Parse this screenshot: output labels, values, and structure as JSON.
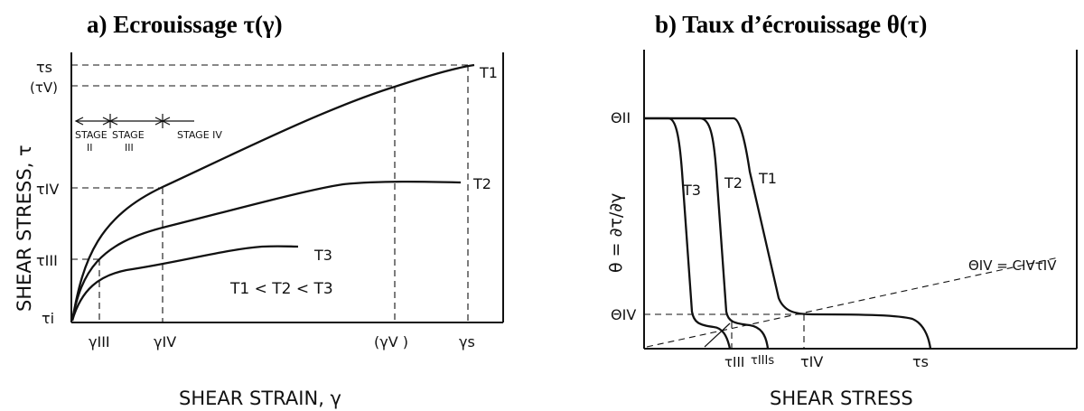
{
  "panel_a": {
    "title": "a)   Ecrouissage τ(γ)",
    "ylabel": "SHEAR STRESS, τ",
    "xlabel": "SHEAR STRAIN, γ",
    "y_ticks": {
      "tau_s": "τs",
      "tau_v": "(τV)",
      "tau_iv": "τIV",
      "tau_iii": "τIII",
      "tau_i": "τi"
    },
    "x_ticks": {
      "gamma_iii": "γIII",
      "gamma_iv": "γIV",
      "gamma_v": "(γV )",
      "gamma_s": "γs"
    },
    "stages": {
      "stage_ii": "STAGE\nII",
      "stage_iii": "STAGE\nIII",
      "stage_iv": "STAGE IV"
    },
    "curve_labels": {
      "t1": "T1",
      "t2": "T2",
      "t3": "T3"
    },
    "note": "T1  <  T2  <  T3"
  },
  "panel_b": {
    "title": "b)   Taux d’écrouissage θ(τ)",
    "ylabel": "θ = ∂τ/∂γ",
    "xlabel": "SHEAR STRESS",
    "y_ticks": {
      "theta_ii": "ΘII",
      "theta_iv": "ΘIV"
    },
    "x_ticks": {
      "tau_iii": "τIII",
      "tau_iiis": "τIIIs",
      "tau_iv": "τIV",
      "tau_s": "τs"
    },
    "curve_labels": {
      "t1": "T1",
      "t2": "T2",
      "t3": "T3"
    },
    "equation": "ΘIV = CIVτIV"
  }
}
